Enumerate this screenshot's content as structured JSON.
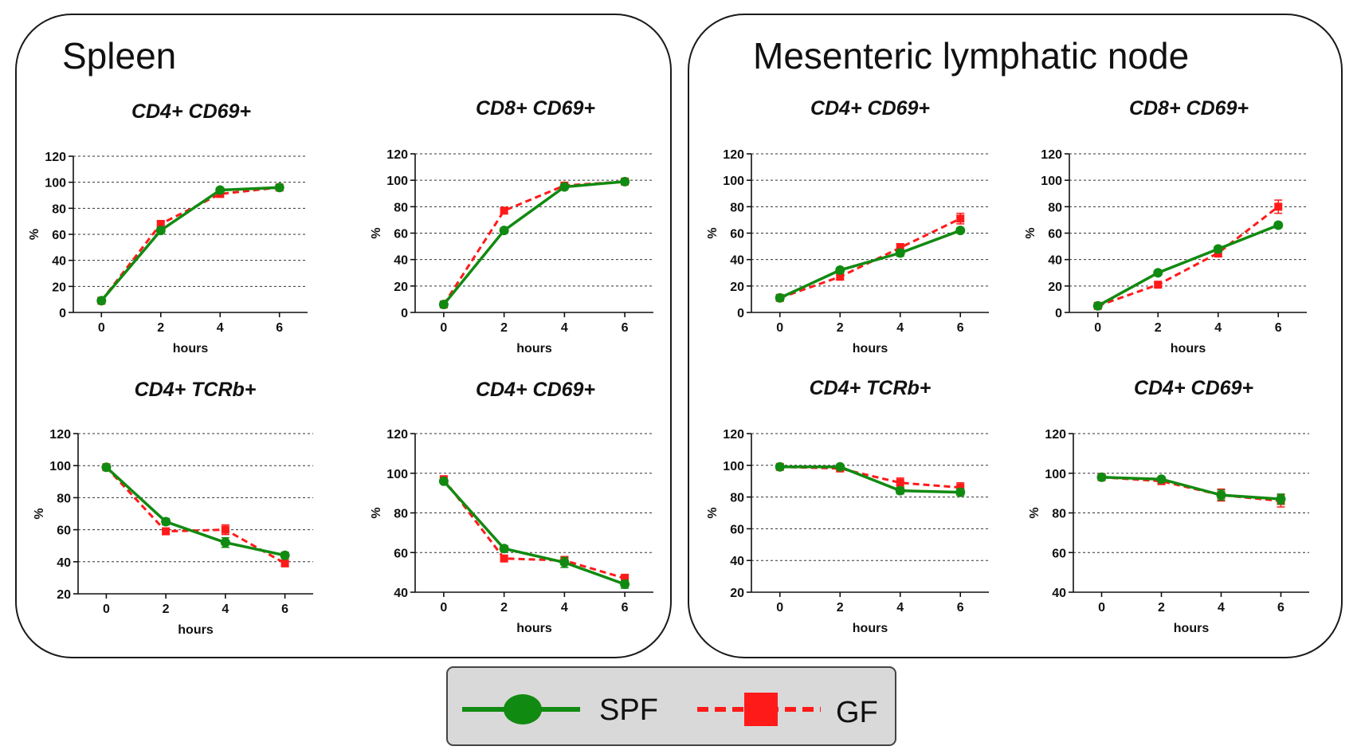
{
  "colors": {
    "spf": "#118a11",
    "gf": "#ff1a1a"
  },
  "legend": {
    "spf_label": "SPF",
    "gf_label": "GF"
  },
  "panels": [
    {
      "title": "Spleen"
    },
    {
      "title": "Mesenteric lymphatic node"
    }
  ],
  "chart_data": [
    {
      "type": "line",
      "panel": "Spleen",
      "title": "CD4+ CD69+",
      "xlabel": "hours",
      "ylabel": "%",
      "x": [
        0,
        2,
        4,
        6
      ],
      "ylim": [
        0,
        120
      ],
      "yticks": [
        0,
        20,
        40,
        60,
        80,
        100,
        120
      ],
      "series": [
        {
          "name": "SPF",
          "values": [
            9,
            63,
            94,
            96
          ],
          "errors": [
            1,
            2,
            1.5,
            1
          ]
        },
        {
          "name": "GF",
          "values": [
            9,
            68,
            91,
            96
          ],
          "errors": [
            1,
            2,
            2,
            1
          ]
        }
      ]
    },
    {
      "type": "line",
      "panel": "Spleen",
      "title": "CD8+ CD69+",
      "xlabel": "hours",
      "ylabel": "%",
      "x": [
        0,
        2,
        4,
        6
      ],
      "ylim": [
        0,
        120
      ],
      "yticks": [
        0,
        20,
        40,
        60,
        80,
        100,
        120
      ],
      "series": [
        {
          "name": "SPF",
          "values": [
            6,
            62,
            95,
            99
          ],
          "errors": [
            1,
            2,
            1,
            1
          ]
        },
        {
          "name": "GF",
          "values": [
            6,
            77,
            96,
            99
          ],
          "errors": [
            1,
            2,
            1,
            1
          ]
        }
      ]
    },
    {
      "type": "line",
      "panel": "Spleen",
      "title": "CD4+ TCRb+",
      "xlabel": "hours",
      "ylabel": "%",
      "x": [
        0,
        2,
        4,
        6
      ],
      "ylim": [
        20,
        120
      ],
      "yticks": [
        20,
        40,
        60,
        80,
        100,
        120
      ],
      "series": [
        {
          "name": "SPF",
          "values": [
            99,
            65,
            52,
            44
          ],
          "errors": [
            1,
            2,
            3,
            2
          ]
        },
        {
          "name": "GF",
          "values": [
            99,
            59,
            60,
            39
          ],
          "errors": [
            1,
            2,
            3,
            2
          ]
        }
      ]
    },
    {
      "type": "line",
      "panel": "Spleen",
      "title": "CD4+ CD69+",
      "xlabel": "hours",
      "ylabel": "%",
      "x": [
        0,
        2,
        4,
        6
      ],
      "ylim": [
        40,
        120
      ],
      "yticks": [
        40,
        60,
        80,
        100,
        120
      ],
      "series": [
        {
          "name": "SPF",
          "values": [
            96,
            62,
            55,
            44
          ],
          "errors": [
            1,
            1.5,
            2.5,
            2
          ]
        },
        {
          "name": "GF",
          "values": [
            97,
            57,
            56,
            47
          ],
          "errors": [
            1,
            1.5,
            2,
            2
          ]
        }
      ]
    },
    {
      "type": "line",
      "panel": "Mesenteric lymphatic node",
      "title": "CD4+ CD69+",
      "xlabel": "hours",
      "ylabel": "%",
      "x": [
        0,
        2,
        4,
        6
      ],
      "ylim": [
        0,
        120
      ],
      "yticks": [
        0,
        20,
        40,
        60,
        80,
        100,
        120
      ],
      "series": [
        {
          "name": "SPF",
          "values": [
            11,
            32,
            45,
            62
          ],
          "errors": [
            2,
            2,
            2.5,
            2
          ]
        },
        {
          "name": "GF",
          "values": [
            11,
            27,
            49,
            71
          ],
          "errors": [
            2,
            2,
            3,
            4
          ]
        }
      ]
    },
    {
      "type": "line",
      "panel": "Mesenteric lymphatic node",
      "title": "CD8+ CD69+",
      "xlabel": "hours",
      "ylabel": "%",
      "x": [
        0,
        2,
        4,
        6
      ],
      "ylim": [
        0,
        120
      ],
      "yticks": [
        0,
        20,
        40,
        60,
        80,
        100,
        120
      ],
      "series": [
        {
          "name": "SPF",
          "values": [
            5,
            30,
            48,
            66
          ],
          "errors": [
            1,
            1.5,
            2,
            2
          ]
        },
        {
          "name": "GF",
          "values": [
            5,
            21,
            45,
            80
          ],
          "errors": [
            1,
            1.5,
            3,
            5
          ]
        }
      ]
    },
    {
      "type": "line",
      "panel": "Mesenteric lymphatic node",
      "title": "CD4+ TCRb+",
      "xlabel": "hours",
      "ylabel": "%",
      "x": [
        0,
        2,
        4,
        6
      ],
      "ylim": [
        20,
        120
      ],
      "yticks": [
        20,
        40,
        60,
        80,
        100,
        120
      ],
      "series": [
        {
          "name": "SPF",
          "values": [
            99,
            99,
            84,
            83
          ],
          "errors": [
            1,
            1,
            2,
            2
          ]
        },
        {
          "name": "GF",
          "values": [
            99,
            98,
            89,
            86
          ],
          "errors": [
            1,
            1,
            3,
            3
          ]
        }
      ]
    },
    {
      "type": "line",
      "panel": "Mesenteric lymphatic node",
      "title": "CD4+ CD69+",
      "xlabel": "hours",
      "ylabel": "%",
      "x": [
        0,
        2,
        4,
        6
      ],
      "ylim": [
        40,
        120
      ],
      "yticks": [
        40,
        60,
        80,
        100,
        120
      ],
      "series": [
        {
          "name": "SPF",
          "values": [
            98,
            97,
            89,
            87
          ],
          "errors": [
            1,
            1,
            2.5,
            2.5
          ]
        },
        {
          "name": "GF",
          "values": [
            98,
            96,
            89,
            86
          ],
          "errors": [
            1,
            1,
            3,
            3
          ]
        }
      ]
    }
  ]
}
